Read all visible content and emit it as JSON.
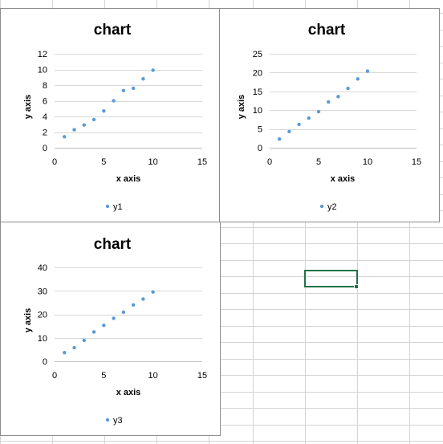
{
  "chart_data": [
    {
      "type": "scatter",
      "title": "chart",
      "xlabel": "x axis",
      "ylabel": "y axis",
      "xlim": [
        0,
        15
      ],
      "ylim": [
        0,
        12
      ],
      "x_ticks": [
        "0",
        "5",
        "10",
        "15"
      ],
      "y_ticks": [
        "0",
        "2",
        "4",
        "6",
        "8",
        "10",
        "12"
      ],
      "grid": true,
      "legend_position": "bottom",
      "series": [
        {
          "name": "y1",
          "color": "#5b9bd5",
          "x": [
            1,
            2,
            3,
            4,
            5,
            6,
            7,
            8,
            9,
            10
          ],
          "y": [
            1.4,
            2.3,
            2.9,
            3.6,
            4.7,
            6.0,
            7.3,
            7.6,
            8.8,
            9.9
          ]
        }
      ]
    },
    {
      "type": "scatter",
      "title": "chart",
      "xlabel": "x axis",
      "ylabel": "y axis",
      "xlim": [
        0,
        15
      ],
      "ylim": [
        0,
        25
      ],
      "x_ticks": [
        "0",
        "5",
        "10",
        "15"
      ],
      "y_ticks": [
        "0",
        "5",
        "10",
        "15",
        "20",
        "25"
      ],
      "grid": true,
      "legend_position": "bottom",
      "series": [
        {
          "name": "y2",
          "color": "#5b9bd5",
          "x": [
            1,
            2,
            3,
            4,
            5,
            6,
            7,
            8,
            9,
            10
          ],
          "y": [
            2.3,
            4.3,
            6.2,
            7.9,
            9.6,
            12.2,
            13.6,
            15.8,
            18.3,
            20.4
          ]
        }
      ]
    },
    {
      "type": "scatter",
      "title": "chart",
      "xlabel": "x axis",
      "ylabel": "y axis",
      "xlim": [
        0,
        15
      ],
      "ylim": [
        0,
        40
      ],
      "x_ticks": [
        "0",
        "5",
        "10",
        "15"
      ],
      "y_ticks": [
        "0",
        "10",
        "20",
        "30",
        "40"
      ],
      "grid": true,
      "legend_position": "bottom",
      "series": [
        {
          "name": "y3",
          "color": "#5b9bd5",
          "x": [
            1,
            2,
            3,
            4,
            5,
            6,
            7,
            8,
            9,
            10
          ],
          "y": [
            3.7,
            5.8,
            8.9,
            12.5,
            15.3,
            18.3,
            20.9,
            24.0,
            26.5,
            29.5
          ]
        }
      ]
    }
  ],
  "sheet": {
    "gridline_color": "#d4d4d4",
    "selection_color": "#217346"
  }
}
